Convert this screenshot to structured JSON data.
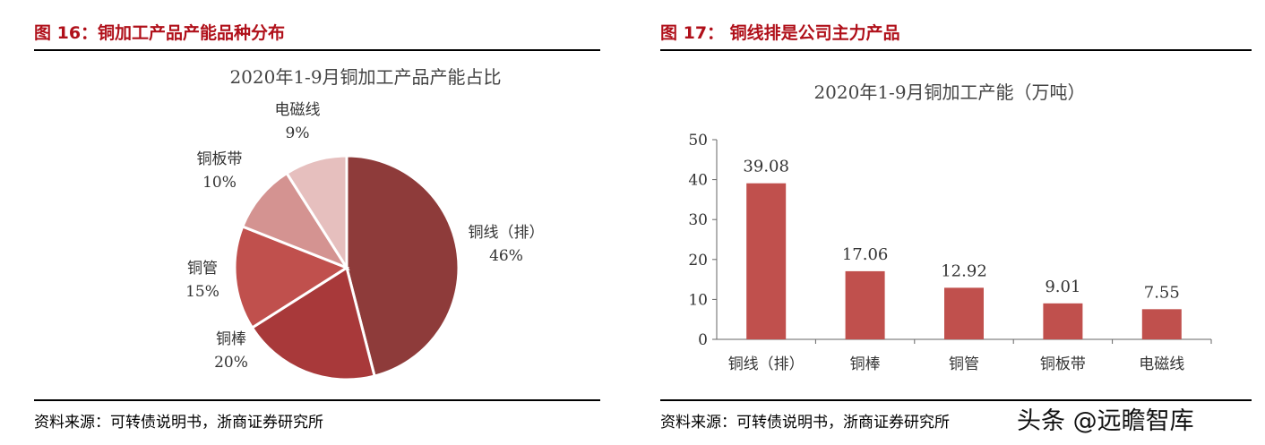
{
  "fig16": {
    "title": "图 16：铜加工产品产能品种分布",
    "source": "资料来源：可转债说明书，浙商证券研究所"
  },
  "fig17": {
    "title": "图 17：  铜线排是公司主力产品",
    "source": "资料来源：可转债说明书，浙商证券研究所"
  },
  "watermark": "头条 @远瞻智库",
  "chart_data": [
    {
      "type": "pie",
      "title": "2020年1-9月铜加工产品产能占比",
      "categories": [
        "铜线（排）",
        "铜棒",
        "铜管",
        "铜板带",
        "电磁线"
      ],
      "values": [
        46,
        20,
        15,
        10,
        9
      ],
      "labels": [
        "46%",
        "20%",
        "15%",
        "10%",
        "9%"
      ],
      "colors": [
        "#8E3B3A",
        "#A8393A",
        "#C0504D",
        "#D49391",
        "#E6BFBE"
      ]
    },
    {
      "type": "bar",
      "title": "2020年1-9月铜加工产能（万吨）",
      "categories": [
        "铜线（排）",
        "铜棒",
        "铜管",
        "铜板带",
        "电磁线"
      ],
      "values": [
        39.08,
        17.06,
        12.92,
        9.01,
        7.55
      ],
      "ylim": [
        0,
        50
      ],
      "yticks": [
        0,
        10,
        20,
        30,
        40,
        50
      ],
      "color": "#C0504D",
      "grid": false
    }
  ]
}
